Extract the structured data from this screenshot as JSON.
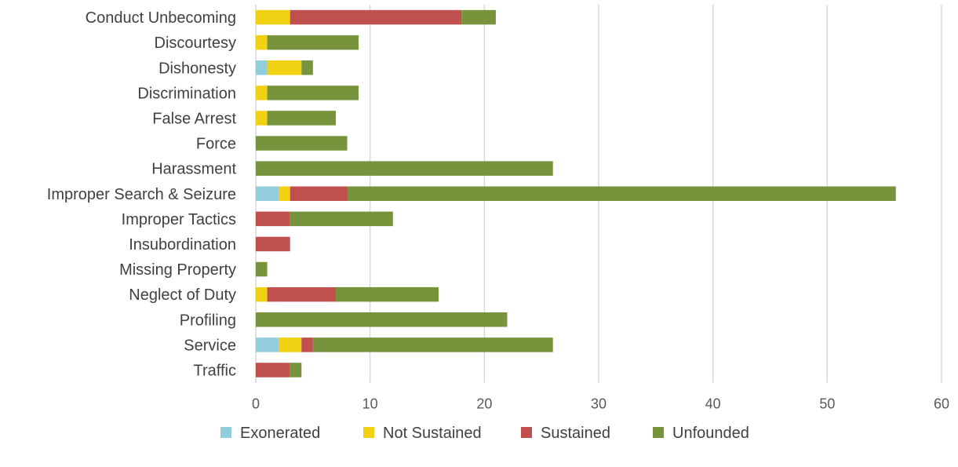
{
  "chart_data": {
    "type": "bar",
    "orientation": "horizontal",
    "stacked": true,
    "title": "",
    "xlabel": "",
    "ylabel": "",
    "xlim": [
      0,
      60
    ],
    "x_ticks": [
      0,
      10,
      20,
      30,
      40,
      50,
      60
    ],
    "grid": "vertical",
    "legend_position": "bottom",
    "categories": [
      "Conduct Unbecoming",
      "Discourtesy",
      "Dishonesty",
      "Discrimination",
      "False Arrest",
      "Force",
      "Harassment",
      "Improper Search & Seizure",
      "Improper Tactics",
      "Insubordination",
      "Missing Property",
      "Neglect of Duty",
      "Profiling",
      "Service",
      "Traffic"
    ],
    "series": [
      {
        "name": "Exonerated",
        "color": "#92cddc",
        "values": [
          0,
          0,
          1,
          0,
          0,
          0,
          0,
          2,
          0,
          0,
          0,
          0,
          0,
          2,
          0
        ]
      },
      {
        "name": "Not Sustained",
        "color": "#f0d213",
        "values": [
          3,
          1,
          3,
          1,
          1,
          0,
          0,
          1,
          0,
          0,
          0,
          1,
          0,
          2,
          0
        ]
      },
      {
        "name": "Sustained",
        "color": "#c0504d",
        "values": [
          15,
          0,
          0,
          0,
          0,
          0,
          0,
          5,
          3,
          3,
          0,
          6,
          0,
          1,
          3
        ]
      },
      {
        "name": "Unfounded",
        "color": "#77933c",
        "values": [
          3,
          8,
          1,
          8,
          6,
          8,
          26,
          48,
          9,
          0,
          1,
          9,
          22,
          21,
          1
        ]
      }
    ]
  }
}
